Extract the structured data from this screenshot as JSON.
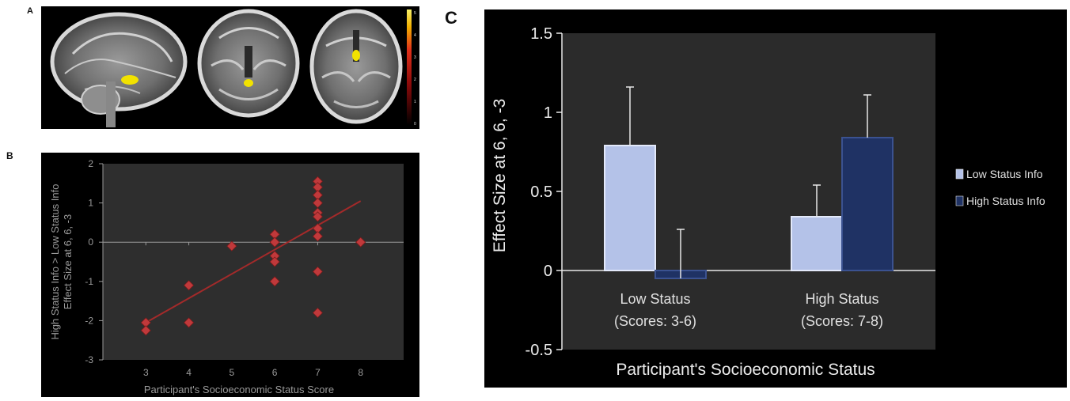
{
  "panel_letters": {
    "a": "A",
    "b": "B",
    "c": "C"
  },
  "colorbar": {
    "labels": [
      "5",
      "4",
      "3",
      "2",
      "1",
      "0"
    ]
  },
  "colors": {
    "scatter_bg": "#2e2e2e",
    "scatter_point": "#c0393b",
    "fit_line": "#a32a2a",
    "bar_bg": "#2b2b2b",
    "low_status_info": "#b4c2e8",
    "high_status_info": "#1f3264",
    "activation": "#f2e200"
  },
  "chart_data": [
    {
      "type": "scatter",
      "title": "",
      "xlabel": "Participant's Socioeconomic Status Score",
      "ylabel_line1": "High Status Info > Low Status Info",
      "ylabel_line2": "Effect Size at 6, 6, -3",
      "xlim": [
        2,
        9
      ],
      "ylim": [
        -3,
        2
      ],
      "x_ticks": [
        3,
        4,
        5,
        6,
        7,
        8
      ],
      "y_ticks": [
        -3,
        -2,
        -1,
        0,
        1,
        2
      ],
      "grid": false,
      "points": [
        {
          "x": 3,
          "y": -2.05
        },
        {
          "x": 3,
          "y": -2.25
        },
        {
          "x": 4,
          "y": -1.1
        },
        {
          "x": 4,
          "y": -2.05
        },
        {
          "x": 5,
          "y": -0.1
        },
        {
          "x": 6,
          "y": 0.2
        },
        {
          "x": 6,
          "y": 0.0
        },
        {
          "x": 6,
          "y": -0.35
        },
        {
          "x": 6,
          "y": -0.5
        },
        {
          "x": 6,
          "y": -1.0
        },
        {
          "x": 7,
          "y": 1.55
        },
        {
          "x": 7,
          "y": 1.4
        },
        {
          "x": 7,
          "y": 1.2
        },
        {
          "x": 7,
          "y": 1.0
        },
        {
          "x": 7,
          "y": 0.75
        },
        {
          "x": 7,
          "y": 0.65
        },
        {
          "x": 7,
          "y": 0.35
        },
        {
          "x": 7,
          "y": 0.15
        },
        {
          "x": 7,
          "y": -0.75
        },
        {
          "x": 7,
          "y": -1.8
        },
        {
          "x": 8,
          "y": 0.0
        }
      ],
      "fit_line": {
        "x": [
          3,
          8
        ],
        "y": [
          -2.05,
          1.05
        ]
      }
    },
    {
      "type": "bar",
      "title": "",
      "xlabel": "Participant's Socioeconomic Status",
      "ylabel": "Effect Size at 6, 6, -3",
      "categories": [
        {
          "line1": "Low Status",
          "line2": "(Scores: 3-6)"
        },
        {
          "line1": "High Status",
          "line2": "(Scores: 7-8)"
        }
      ],
      "series": [
        {
          "name": "Low Status Info",
          "values": [
            0.79,
            0.34
          ],
          "error": [
            0.37,
            0.2
          ]
        },
        {
          "name": "High Status Info",
          "values": [
            -0.05,
            0.84
          ],
          "error": [
            0.31,
            0.27
          ]
        }
      ],
      "ylim": [
        -0.5,
        1.5
      ],
      "y_ticks": [
        -0.5,
        0,
        0.5,
        1,
        1.5
      ],
      "y_tick_labels": [
        "-0.5",
        "0",
        "0.5",
        "1",
        "1.5"
      ],
      "legend_position": "right",
      "grid": false
    }
  ]
}
